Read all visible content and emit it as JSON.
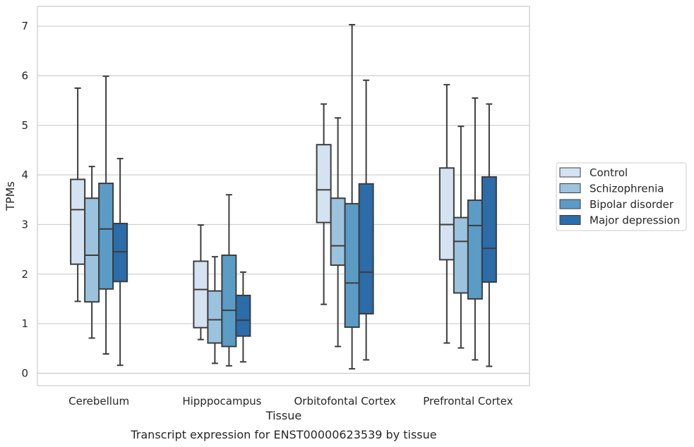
{
  "chart_data": {
    "type": "boxplot",
    "caption": "Transcript expression for ENST00000623539 by tissue",
    "xlabel": "Tissue",
    "ylabel": "TPMs",
    "ylim": [
      -0.25,
      7.4
    ],
    "yticks": [
      0,
      1,
      2,
      3,
      4,
      5,
      6,
      7
    ],
    "grid": "horizontal",
    "legend_position": "right",
    "categories": [
      "Cerebellum",
      "Hipppocampus",
      "Orbitofontal Cortex",
      "Prefrontal Cortex"
    ],
    "series": [
      {
        "name": "Control",
        "color": "#d4e2f1",
        "boxes": [
          {
            "whisker_low": 1.45,
            "q1": 2.2,
            "median": 3.3,
            "q3": 3.91,
            "whisker_high": 5.75
          },
          {
            "whisker_low": 0.68,
            "q1": 0.92,
            "median": 1.69,
            "q3": 2.26,
            "whisker_high": 2.99
          },
          {
            "whisker_low": 1.39,
            "q1": 3.04,
            "median": 3.7,
            "q3": 4.61,
            "whisker_high": 5.43
          },
          {
            "whisker_low": 0.61,
            "q1": 2.29,
            "median": 3.0,
            "q3": 4.14,
            "whisker_high": 5.82
          }
        ]
      },
      {
        "name": "Schizophrenia",
        "color": "#9cc3de",
        "boxes": [
          {
            "whisker_low": 0.71,
            "q1": 1.44,
            "median": 2.38,
            "q3": 3.53,
            "whisker_high": 4.17
          },
          {
            "whisker_low": 0.2,
            "q1": 0.61,
            "median": 1.08,
            "q3": 1.66,
            "whisker_high": 2.35
          },
          {
            "whisker_low": 0.54,
            "q1": 2.18,
            "median": 2.57,
            "q3": 3.53,
            "whisker_high": 5.15
          },
          {
            "whisker_low": 0.51,
            "q1": 1.62,
            "median": 2.66,
            "q3": 3.14,
            "whisker_high": 4.98
          }
        ]
      },
      {
        "name": "Bipolar disorder",
        "color": "#5b9cc7",
        "boxes": [
          {
            "whisker_low": 0.39,
            "q1": 1.7,
            "median": 2.91,
            "q3": 3.83,
            "whisker_high": 5.99
          },
          {
            "whisker_low": 0.15,
            "q1": 0.54,
            "median": 1.27,
            "q3": 2.38,
            "whisker_high": 3.6
          },
          {
            "whisker_low": 0.09,
            "q1": 0.93,
            "median": 1.82,
            "q3": 3.42,
            "whisker_high": 7.03
          },
          {
            "whisker_low": 0.27,
            "q1": 1.5,
            "median": 2.98,
            "q3": 3.49,
            "whisker_high": 5.55
          }
        ]
      },
      {
        "name": "Major depression",
        "color": "#2b6ca9",
        "boxes": [
          {
            "whisker_low": 0.16,
            "q1": 1.85,
            "median": 2.45,
            "q3": 3.02,
            "whisker_high": 4.33
          },
          {
            "whisker_low": 0.23,
            "q1": 0.75,
            "median": 1.07,
            "q3": 1.57,
            "whisker_high": 2.04
          },
          {
            "whisker_low": 0.27,
            "q1": 1.2,
            "median": 2.04,
            "q3": 3.82,
            "whisker_high": 5.91
          },
          {
            "whisker_low": 0.14,
            "q1": 1.84,
            "median": 2.52,
            "q3": 3.96,
            "whisker_high": 5.43
          }
        ]
      }
    ]
  }
}
